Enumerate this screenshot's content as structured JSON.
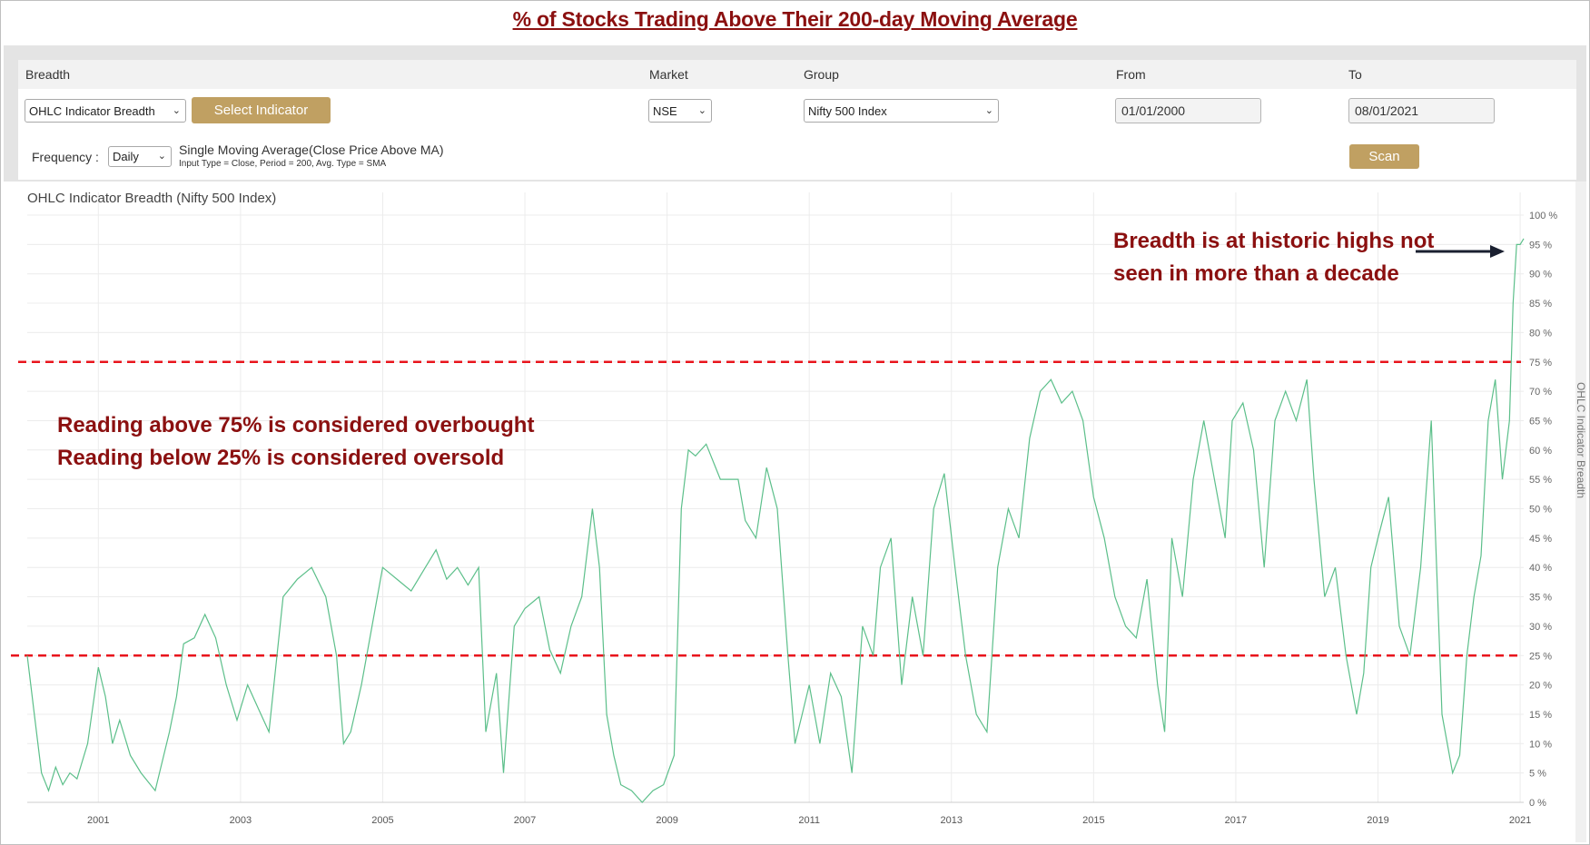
{
  "page_title": "% of Stocks Trading Above Their 200-day Moving Average",
  "controls": {
    "breadth_label": "Breadth",
    "breadth_value": "OHLC Indicator Breadth",
    "select_indicator_label": "Select Indicator",
    "market_label": "Market",
    "market_value": "NSE",
    "group_label": "Group",
    "group_value": "Nifty 500 Index",
    "from_label": "From",
    "from_value": "01/01/2000",
    "to_label": "To",
    "to_value": "08/01/2021",
    "frequency_label": "Frequency :",
    "frequency_value": "Daily",
    "indicator_name": "Single Moving Average(Close Price Above MA)",
    "indicator_params": "Input Type = Close, Period = 200, Avg. Type = SMA",
    "scan_label": "Scan"
  },
  "chart_data": {
    "type": "line",
    "title": "OHLC Indicator Breadth (Nifty 500 Index)",
    "ylabel": "OHLC Indicator Breadth",
    "xlabel": "",
    "xlim": [
      2000.0,
      2021.05
    ],
    "ylim": [
      0,
      100
    ],
    "x_ticks": [
      "2001",
      "2003",
      "2005",
      "2007",
      "2009",
      "2011",
      "2013",
      "2015",
      "2017",
      "2019",
      "2021"
    ],
    "y_ticks": [
      "0 %",
      "5 %",
      "10 %",
      "15 %",
      "20 %",
      "25 %",
      "30 %",
      "35 %",
      "40 %",
      "45 %",
      "50 %",
      "55 %",
      "60 %",
      "65 %",
      "70 %",
      "75 %",
      "80 %",
      "85 %",
      "90 %",
      "95 %",
      "100 %"
    ],
    "grid": true,
    "line_color": "#5cbf8a",
    "reference_line_color": "#e8141c",
    "reference_lines": [
      75,
      25
    ],
    "series": [
      {
        "x": [
          2000.0,
          2000.1,
          2000.2,
          2000.3,
          2000.4,
          2000.5,
          2000.6,
          2000.7,
          2000.85,
          2001.0,
          2001.1,
          2001.2,
          2001.3,
          2001.45,
          2001.6,
          2001.8,
          2002.0,
          2002.1,
          2002.2,
          2002.35,
          2002.5,
          2002.65,
          2002.8,
          2002.95,
          2003.1,
          2003.25,
          2003.4,
          2003.6,
          2003.8,
          2004.0,
          2004.2,
          2004.35,
          2004.45,
          2004.55,
          2004.7,
          2004.85,
          2005.0,
          2005.2,
          2005.4,
          2005.6,
          2005.75,
          2005.9,
          2006.05,
          2006.2,
          2006.35,
          2006.45,
          2006.6,
          2006.7,
          2006.85,
          2007.0,
          2007.2,
          2007.35,
          2007.5,
          2007.65,
          2007.8,
          2007.95,
          2008.05,
          2008.15,
          2008.25,
          2008.35,
          2008.5,
          2008.65,
          2008.8,
          2008.95,
          2009.1,
          2009.2,
          2009.3,
          2009.4,
          2009.55,
          2009.75,
          2010.0,
          2010.1,
          2010.25,
          2010.4,
          2010.55,
          2010.7,
          2010.8,
          2010.9,
          2011.0,
          2011.15,
          2011.3,
          2011.45,
          2011.6,
          2011.75,
          2011.9,
          2012.0,
          2012.15,
          2012.3,
          2012.45,
          2012.6,
          2012.75,
          2012.9,
          2013.05,
          2013.2,
          2013.35,
          2013.5,
          2013.65,
          2013.8,
          2013.95,
          2014.1,
          2014.25,
          2014.4,
          2014.55,
          2014.7,
          2014.85,
          2015.0,
          2015.15,
          2015.3,
          2015.45,
          2015.6,
          2015.75,
          2015.9,
          2016.0,
          2016.1,
          2016.25,
          2016.4,
          2016.55,
          2016.7,
          2016.85,
          2016.95,
          2017.1,
          2017.25,
          2017.4,
          2017.55,
          2017.7,
          2017.85,
          2018.0,
          2018.1,
          2018.25,
          2018.4,
          2018.55,
          2018.7,
          2018.8,
          2018.9,
          2019.0,
          2019.15,
          2019.3,
          2019.45,
          2019.6,
          2019.75,
          2019.9,
          2020.05,
          2020.15,
          2020.25,
          2020.35,
          2020.45,
          2020.55,
          2020.65,
          2020.75,
          2020.85,
          2020.9,
          2020.95,
          2021.0,
          2021.05
        ],
        "values": [
          25,
          15,
          5,
          2,
          6,
          3,
          5,
          4,
          10,
          23,
          18,
          10,
          14,
          8,
          5,
          2,
          12,
          18,
          27,
          28,
          32,
          28,
          20,
          14,
          20,
          16,
          12,
          35,
          38,
          40,
          35,
          25,
          10,
          12,
          20,
          30,
          40,
          38,
          36,
          40,
          43,
          38,
          40,
          37,
          40,
          12,
          22,
          5,
          30,
          33,
          35,
          26,
          22,
          30,
          35,
          50,
          40,
          15,
          8,
          3,
          2,
          0,
          2,
          3,
          8,
          50,
          60,
          59,
          61,
          55,
          55,
          48,
          45,
          57,
          50,
          25,
          10,
          15,
          20,
          10,
          22,
          18,
          5,
          30,
          25,
          40,
          45,
          20,
          35,
          25,
          50,
          56,
          40,
          25,
          15,
          12,
          40,
          50,
          45,
          62,
          70,
          72,
          68,
          70,
          65,
          52,
          45,
          35,
          30,
          28,
          38,
          20,
          12,
          45,
          35,
          55,
          65,
          55,
          45,
          65,
          68,
          60,
          40,
          65,
          70,
          65,
          72,
          55,
          35,
          40,
          25,
          15,
          22,
          40,
          45,
          52,
          30,
          25,
          40,
          65,
          15,
          5,
          8,
          25,
          35,
          42,
          65,
          72,
          55,
          65,
          85,
          95,
          95,
          96
        ]
      }
    ]
  },
  "annotations": {
    "top_right_line1": "Breadth is at historic highs not",
    "top_right_line2": "seen in more than a decade",
    "left_line1": "Reading above 75% is considered overbought",
    "left_line2": "Reading below 25% is considered oversold"
  }
}
